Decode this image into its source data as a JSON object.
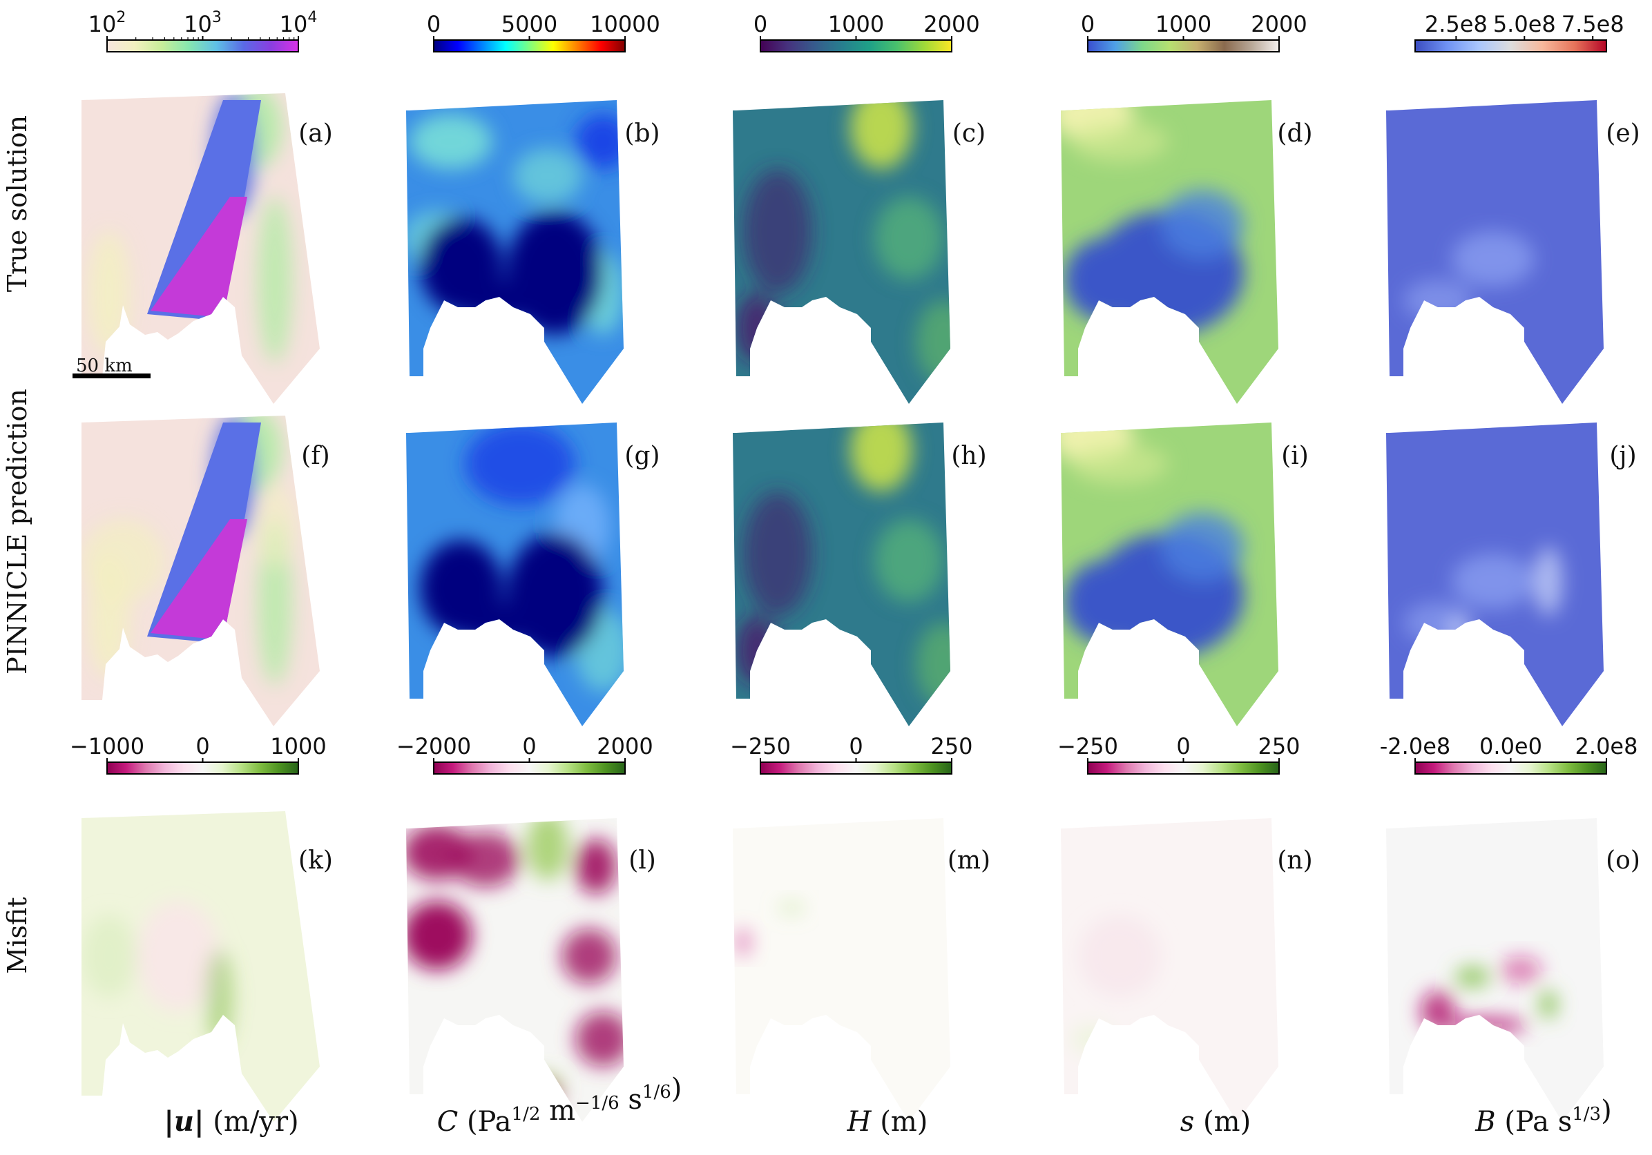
{
  "row_labels": [
    "True solution",
    "PINNICLE prediction",
    "Misfit"
  ],
  "panel_labels": [
    "(a)",
    "(b)",
    "(c)",
    "(d)",
    "(e)",
    "(f)",
    "(g)",
    "(h)",
    "(i)",
    "(j)",
    "(k)",
    "(l)",
    "(m)",
    "(n)",
    "(o)"
  ],
  "scale_bar_label": "50 km",
  "columns": [
    {
      "quantity_symbol": "|u|",
      "quantity_units": "(m/yr)",
      "top_cmap": [
        "#f7e6df",
        "#f2f0c0",
        "#c7ee9a",
        "#86e6b0",
        "#5fc0e6",
        "#5a6ae6",
        "#8a3ee0",
        "#d932e6"
      ],
      "top_ticks": [
        {
          "base": "10",
          "exp": "2"
        },
        {
          "base": "10",
          "exp": "3"
        },
        {
          "base": "10",
          "exp": "4"
        }
      ],
      "top_scale": "log",
      "top_range": [
        100,
        10000
      ],
      "misfit_ticks": [
        "−1000",
        "0",
        "1000"
      ],
      "misfit_range": [
        -1000,
        1000
      ]
    },
    {
      "quantity_symbol": "C",
      "quantity_units_parts": [
        "(Pa",
        "1/2",
        " m",
        "−1/6",
        " s",
        "1/6",
        ")"
      ],
      "top_cmap": [
        "#00007f",
        "#0000ff",
        "#007fff",
        "#00ffff",
        "#7fff7f",
        "#ffff00",
        "#ff7f00",
        "#ff0000",
        "#7f0000"
      ],
      "top_ticks": [
        "0",
        "5000",
        "10000"
      ],
      "top_range": [
        0,
        10000
      ],
      "misfit_ticks": [
        "−2000",
        "0",
        "2000"
      ],
      "misfit_range": [
        -2000,
        2000
      ]
    },
    {
      "quantity_symbol": "H",
      "quantity_units": "(m)",
      "top_cmap": [
        "#440154",
        "#46327e",
        "#365c8d",
        "#277f8e",
        "#1fa187",
        "#4ac16d",
        "#a0da39",
        "#fde725"
      ],
      "top_ticks": [
        "0",
        "1000",
        "2000"
      ],
      "top_range": [
        0,
        2000
      ],
      "misfit_ticks": [
        "−250",
        "0",
        "250"
      ],
      "misfit_range": [
        -250,
        250
      ]
    },
    {
      "quantity_symbol": "s",
      "quantity_units": "(m)",
      "top_cmap": [
        "#3a4fd0",
        "#4fa0e6",
        "#7ed88a",
        "#b6e070",
        "#c6b070",
        "#8a6a4e",
        "#b8a898",
        "#f4f0ee"
      ],
      "top_ticks": [
        "0",
        "1000",
        "2000"
      ],
      "top_range": [
        0,
        2000
      ],
      "misfit_ticks": [
        "−250",
        "0",
        "250"
      ],
      "misfit_range": [
        -250,
        250
      ]
    },
    {
      "quantity_symbol": "B",
      "quantity_units_parts": [
        "(Pa s",
        "1/3",
        ")"
      ],
      "top_cmap": [
        "#3b4cc0",
        "#6f92f3",
        "#aac7fd",
        "#dddddd",
        "#f7b89c",
        "#e7745b",
        "#b40426"
      ],
      "top_ticks": [
        "2.5e8",
        "5.0e8",
        "7.5e8"
      ],
      "top_range": [
        100000000.0,
        800000000.0
      ],
      "misfit_ticks": [
        "-2.0e8",
        "0.0e0",
        "2.0e8"
      ],
      "misfit_range": [
        -200000000.0,
        200000000.0
      ]
    }
  ],
  "misfit_cmap": [
    "#8e0152",
    "#c51b7d",
    "#de77ae",
    "#f1b6da",
    "#fde0ef",
    "#f7f7f7",
    "#e6f5d0",
    "#b8e186",
    "#7fbc41",
    "#4d9221",
    "#276419"
  ],
  "panel_colors": {
    "a": {
      "base": "#f5e2dd",
      "flow": "#c43ad8",
      "flow_edge": "#5a70e6",
      "rim": "#a9ec9e"
    },
    "b": {
      "base": "#3a8ee6",
      "hi": "#7fe8d6",
      "low": "#00007f"
    },
    "c": {
      "base": "#2f7a8c",
      "hi": "#c8e04a",
      "low": "#3f2a70"
    },
    "d": {
      "base": "#9ed67a",
      "low": "#3a56c8",
      "hi": "#f2f2b0"
    },
    "e": {
      "base": "#5a6ad6",
      "hi": "#8a9ef0"
    },
    "k": {
      "base": "#f0f5dc"
    },
    "l": {
      "base": "#f6f6f4",
      "neg": "#9e0c5e",
      "pos": "#9ccc5e"
    },
    "m": {
      "base": "#fbfaf6"
    },
    "n": {
      "base": "#faf4f4"
    },
    "o": {
      "base": "#f6f6f6",
      "neg": "#b0106a",
      "pos": "#7cbd42"
    }
  }
}
